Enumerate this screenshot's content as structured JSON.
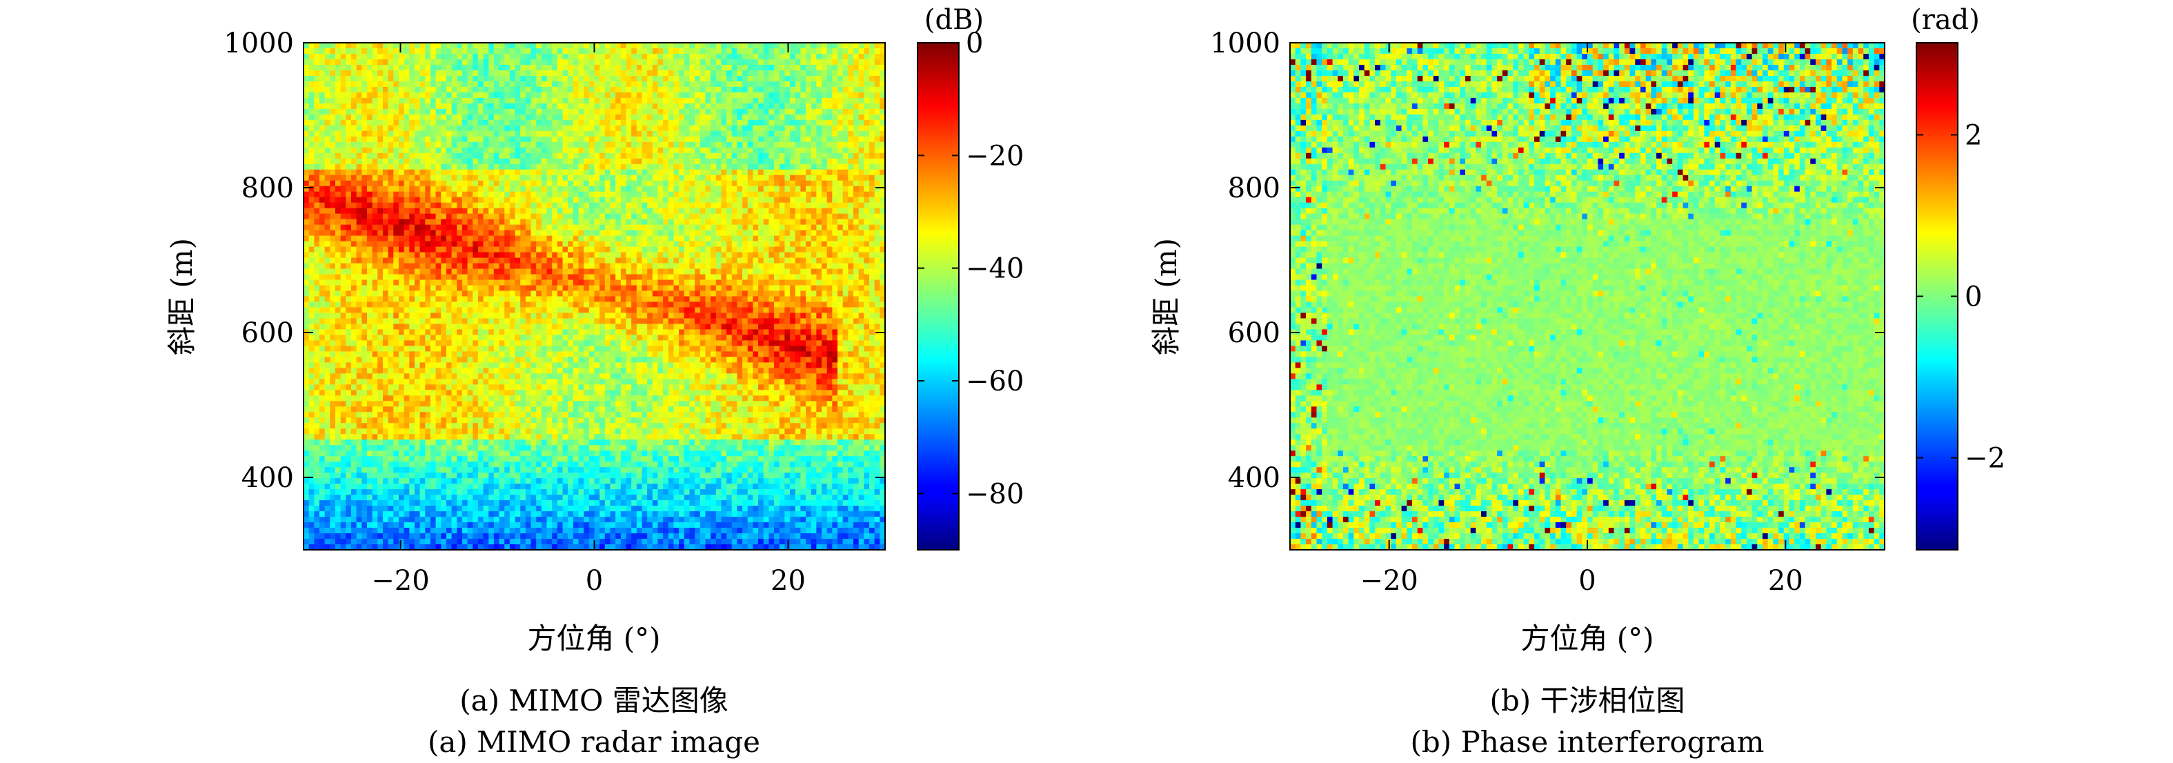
{
  "chart_data": [
    {
      "type": "heatmap",
      "title": "",
      "xlabel": "方位角 (°)",
      "ylabel": "斜距 (m)",
      "xlim": [
        -30,
        30
      ],
      "ylim": [
        300,
        1000
      ],
      "xticks": [
        -20,
        0,
        20
      ],
      "xtick_labels": [
        "−20",
        "0",
        "20"
      ],
      "yticks": [
        400,
        600,
        800,
        1000
      ],
      "ytick_labels": [
        "400",
        "600",
        "800",
        "1000"
      ],
      "colorbar": {
        "unit": "(dB)",
        "range": [
          -90,
          0
        ],
        "ticks": [
          0,
          -20,
          -40,
          -60,
          -80
        ],
        "tick_labels": [
          "0",
          "−20",
          "−40",
          "−60",
          "−80"
        ],
        "colormap": "jet"
      },
      "caption_cn": "(a) MIMO 雷达图像",
      "caption_en": "(a) MIMO radar image"
    },
    {
      "type": "heatmap",
      "title": "",
      "xlabel": "方位角 (°)",
      "ylabel": "斜距 (m)",
      "xlim": [
        -30,
        30
      ],
      "ylim": [
        300,
        1000
      ],
      "xticks": [
        -20,
        0,
        20
      ],
      "xtick_labels": [
        "−20",
        "0",
        "20"
      ],
      "yticks": [
        400,
        600,
        800,
        1000
      ],
      "ytick_labels": [
        "400",
        "600",
        "800",
        "1000"
      ],
      "colorbar": {
        "unit": "(rad)",
        "range": [
          -3.14,
          3.14
        ],
        "ticks": [
          2,
          0,
          -2
        ],
        "tick_labels": [
          "2",
          "0",
          "−2"
        ],
        "colormap": "jet"
      },
      "caption_cn": "(b) 干涉相位图",
      "caption_en": "(b) Phase interferogram"
    }
  ]
}
